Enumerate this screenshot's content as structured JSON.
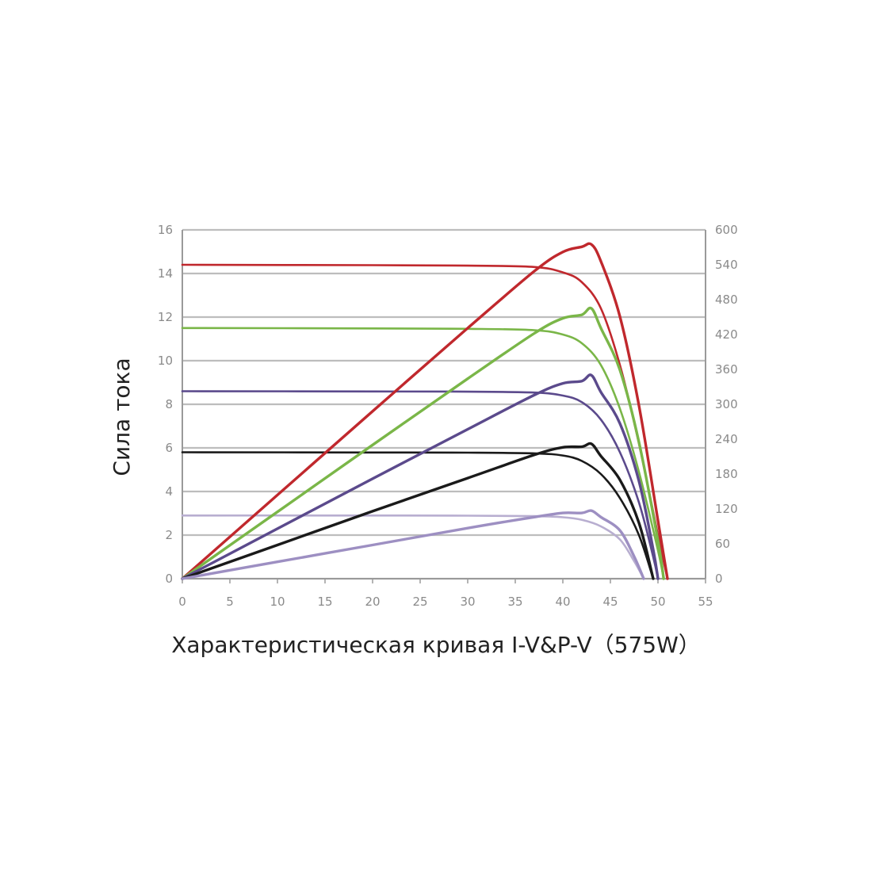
{
  "caption": "Характеристическая кривая I-V&P-V（575W）",
  "chart_data": {
    "type": "line",
    "xlabel": "",
    "ylabel": "Сила тока",
    "y2label": "",
    "xlim": [
      0,
      55
    ],
    "ylim": [
      0,
      16
    ],
    "y2lim": [
      0,
      600
    ],
    "x_ticks": [
      "0",
      "5",
      "10",
      "15",
      "20",
      "25",
      "30",
      "35",
      "40",
      "45",
      "50",
      "55"
    ],
    "y_ticks": [
      "0",
      "2",
      "4",
      "6",
      "8",
      "10",
      "12",
      "14",
      "16"
    ],
    "y2_ticks": [
      "0",
      "60",
      "120",
      "180",
      "240",
      "300",
      "360",
      "420",
      "480",
      "540",
      "600"
    ],
    "grid": "horizontal",
    "iv_curves": [
      {
        "color": "#c0282d",
        "axis": "left",
        "isc": 14.4,
        "voc": 51.0,
        "points": [
          [
            0,
            14.4
          ],
          [
            20,
            14.38
          ],
          [
            30,
            14.36
          ],
          [
            37,
            14.3
          ],
          [
            40,
            14.05
          ],
          [
            42,
            13.6
          ],
          [
            44,
            12.4
          ],
          [
            46,
            9.8
          ],
          [
            48,
            6.2
          ],
          [
            50,
            2.0
          ],
          [
            51,
            0
          ]
        ]
      },
      {
        "color": "#7ab648",
        "axis": "left",
        "isc": 11.5,
        "voc": 50.6,
        "points": [
          [
            0,
            11.5
          ],
          [
            20,
            11.48
          ],
          [
            30,
            11.46
          ],
          [
            37,
            11.4
          ],
          [
            40,
            11.2
          ],
          [
            42,
            10.8
          ],
          [
            44,
            9.8
          ],
          [
            46,
            7.8
          ],
          [
            48,
            4.9
          ],
          [
            50,
            1.3
          ],
          [
            50.6,
            0
          ]
        ]
      },
      {
        "color": "#5b4a8c",
        "axis": "left",
        "isc": 8.6,
        "voc": 50.0,
        "points": [
          [
            0,
            8.6
          ],
          [
            20,
            8.59
          ],
          [
            30,
            8.58
          ],
          [
            37,
            8.54
          ],
          [
            40,
            8.4
          ],
          [
            42,
            8.1
          ],
          [
            44,
            7.3
          ],
          [
            46,
            5.8
          ],
          [
            48,
            3.5
          ],
          [
            49.5,
            1.0
          ],
          [
            50,
            0
          ]
        ]
      },
      {
        "color": "#1a1a1a",
        "axis": "left",
        "isc": 5.8,
        "voc": 49.5,
        "points": [
          [
            0,
            5.8
          ],
          [
            20,
            5.79
          ],
          [
            30,
            5.78
          ],
          [
            37,
            5.75
          ],
          [
            40,
            5.65
          ],
          [
            42,
            5.4
          ],
          [
            44,
            4.8
          ],
          [
            46,
            3.7
          ],
          [
            48,
            2.0
          ],
          [
            49.5,
            0
          ]
        ]
      },
      {
        "color": "#b8aed0",
        "axis": "left",
        "isc": 2.9,
        "voc": 48.5,
        "points": [
          [
            0,
            2.9
          ],
          [
            20,
            2.9
          ],
          [
            30,
            2.89
          ],
          [
            37,
            2.87
          ],
          [
            40,
            2.82
          ],
          [
            42,
            2.7
          ],
          [
            44,
            2.4
          ],
          [
            46,
            1.8
          ],
          [
            47.5,
            0.8
          ],
          [
            48.5,
            0
          ]
        ]
      }
    ],
    "pv_curves": [
      {
        "color": "#c0282d",
        "axis": "right",
        "pmax": 575,
        "points": [
          [
            0,
            0
          ],
          [
            10,
            144
          ],
          [
            20,
            288
          ],
          [
            30,
            431
          ],
          [
            37,
            529
          ],
          [
            40,
            562
          ],
          [
            42,
            571
          ],
          [
            43,
            575
          ],
          [
            44,
            546
          ],
          [
            46,
            451
          ],
          [
            48,
            298
          ],
          [
            50,
            100
          ],
          [
            51,
            0
          ]
        ]
      },
      {
        "color": "#7ab648",
        "axis": "right",
        "pmax": 465,
        "points": [
          [
            0,
            0
          ],
          [
            10,
            115
          ],
          [
            20,
            230
          ],
          [
            30,
            344
          ],
          [
            37,
            422
          ],
          [
            40,
            448
          ],
          [
            42,
            454
          ],
          [
            43,
            465
          ],
          [
            44,
            431
          ],
          [
            46,
            359
          ],
          [
            48,
            235
          ],
          [
            50,
            65
          ],
          [
            50.6,
            0
          ]
        ]
      },
      {
        "color": "#5b4a8c",
        "axis": "right",
        "pmax": 350,
        "points": [
          [
            0,
            0
          ],
          [
            10,
            86
          ],
          [
            20,
            172
          ],
          [
            30,
            257
          ],
          [
            37,
            316
          ],
          [
            40,
            336
          ],
          [
            42,
            340
          ],
          [
            43,
            350
          ],
          [
            44,
            321
          ],
          [
            46,
            267
          ],
          [
            48,
            168
          ],
          [
            49.5,
            50
          ],
          [
            50,
            0
          ]
        ]
      },
      {
        "color": "#1a1a1a",
        "axis": "right",
        "pmax": 232,
        "points": [
          [
            0,
            0
          ],
          [
            10,
            58
          ],
          [
            20,
            116
          ],
          [
            30,
            173
          ],
          [
            37,
            213
          ],
          [
            40,
            226
          ],
          [
            42,
            227
          ],
          [
            43,
            232
          ],
          [
            44,
            211
          ],
          [
            46,
            170
          ],
          [
            48,
            96
          ],
          [
            49.5,
            0
          ]
        ]
      },
      {
        "color": "#9d8fc2",
        "axis": "right",
        "pmax": 117,
        "points": [
          [
            0,
            0
          ],
          [
            10,
            29
          ],
          [
            20,
            58
          ],
          [
            30,
            87
          ],
          [
            37,
            106
          ],
          [
            40,
            113
          ],
          [
            42,
            113
          ],
          [
            43,
            117
          ],
          [
            44,
            106
          ],
          [
            46,
            83
          ],
          [
            47.5,
            38
          ],
          [
            48.5,
            0
          ]
        ]
      }
    ]
  }
}
